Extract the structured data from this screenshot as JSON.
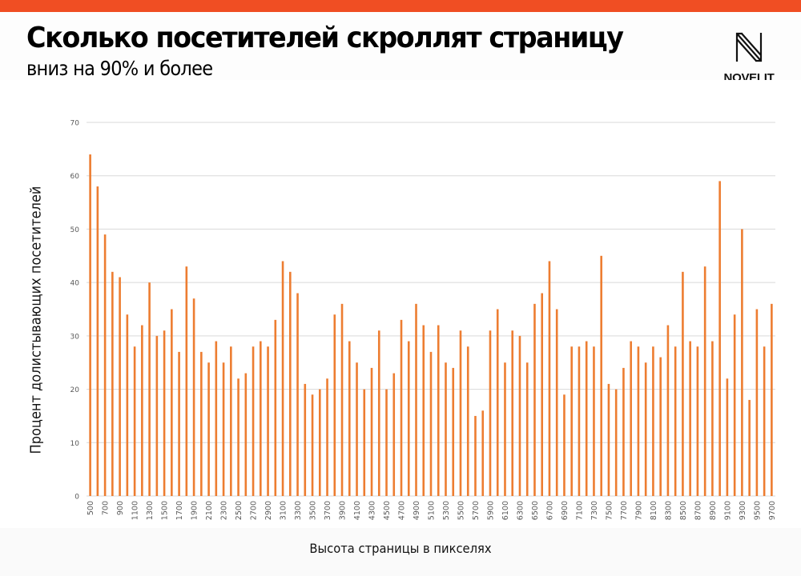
{
  "header": {
    "title": "Сколько посетителей скроллят страницу",
    "subtitle": "вниз на 90% и более"
  },
  "logo": {
    "text": "NOVELIT",
    "icon": "novelit-n-logo-icon"
  },
  "colors": {
    "accent_bar": "#f04e23",
    "bars": "#ed7d31",
    "gridlines": "#d9d9d9",
    "tick_labels": "#595959"
  },
  "chart_data": {
    "type": "bar",
    "title": "Сколько посетителей скроллят страницу вниз на 90% и более",
    "xlabel": "Высота страницы в пикселях",
    "ylabel": "Процент долистывающих посетителей",
    "ylim": [
      0,
      70
    ],
    "yticks": [
      0,
      10,
      20,
      30,
      40,
      50,
      60,
      70
    ],
    "grid": true,
    "legend": "none",
    "categories": [
      500,
      600,
      700,
      800,
      900,
      1000,
      1100,
      1200,
      1300,
      1400,
      1500,
      1600,
      1700,
      1800,
      1900,
      2000,
      2100,
      2200,
      2300,
      2400,
      2500,
      2600,
      2700,
      2800,
      2900,
      3000,
      3100,
      3200,
      3300,
      3400,
      3500,
      3600,
      3700,
      3800,
      3900,
      4000,
      4100,
      4200,
      4300,
      4400,
      4500,
      4600,
      4700,
      4800,
      4900,
      5000,
      5100,
      5200,
      5300,
      5400,
      5500,
      5600,
      5700,
      5800,
      5900,
      6000,
      6100,
      6200,
      6300,
      6400,
      6500,
      6600,
      6700,
      6800,
      6900,
      7000,
      7100,
      7200,
      7300,
      7400,
      7500,
      7600,
      7700,
      7800,
      7900,
      8000,
      8100,
      8200,
      8300,
      8400,
      8500,
      8600,
      8700,
      8800,
      8900,
      9000,
      9100,
      9200,
      9300,
      9400,
      9500,
      9600,
      9700
    ],
    "visible_tick_labels": [
      "500",
      "700",
      "900",
      "1100",
      "1300",
      "1500",
      "1700",
      "1900",
      "2100",
      "2300",
      "2500",
      "2700",
      "2900",
      "3100",
      "3300",
      "3500",
      "3700",
      "3900",
      "4100",
      "4300",
      "4500",
      "4700",
      "4900",
      "5100",
      "5300",
      "5500",
      "5700",
      "5900",
      "6100",
      "6300",
      "6500",
      "6700",
      "6900",
      "7100",
      "7300",
      "7500",
      "7700",
      "7900",
      "8100",
      "8300",
      "8500",
      "8700",
      "8900",
      "9100",
      "9300",
      "9500",
      "9700"
    ],
    "values": [
      64,
      58,
      49,
      42,
      41,
      34,
      28,
      32,
      40,
      30,
      31,
      35,
      27,
      43,
      37,
      27,
      25,
      29,
      25,
      28,
      22,
      23,
      28,
      29,
      28,
      33,
      44,
      42,
      38,
      21,
      19,
      20,
      22,
      34,
      36,
      29,
      25,
      20,
      24,
      31,
      20,
      23,
      33,
      29,
      36,
      32,
      27,
      32,
      25,
      24,
      31,
      28,
      15,
      16,
      31,
      35,
      25,
      31,
      30,
      25,
      36,
      38,
      44,
      35,
      19,
      28,
      28,
      29,
      28,
      45,
      21,
      20,
      24,
      29,
      28,
      25,
      28,
      26,
      32,
      28,
      42,
      29,
      28,
      43,
      29,
      59,
      22,
      34,
      50,
      18,
      35,
      28,
      36
    ]
  }
}
